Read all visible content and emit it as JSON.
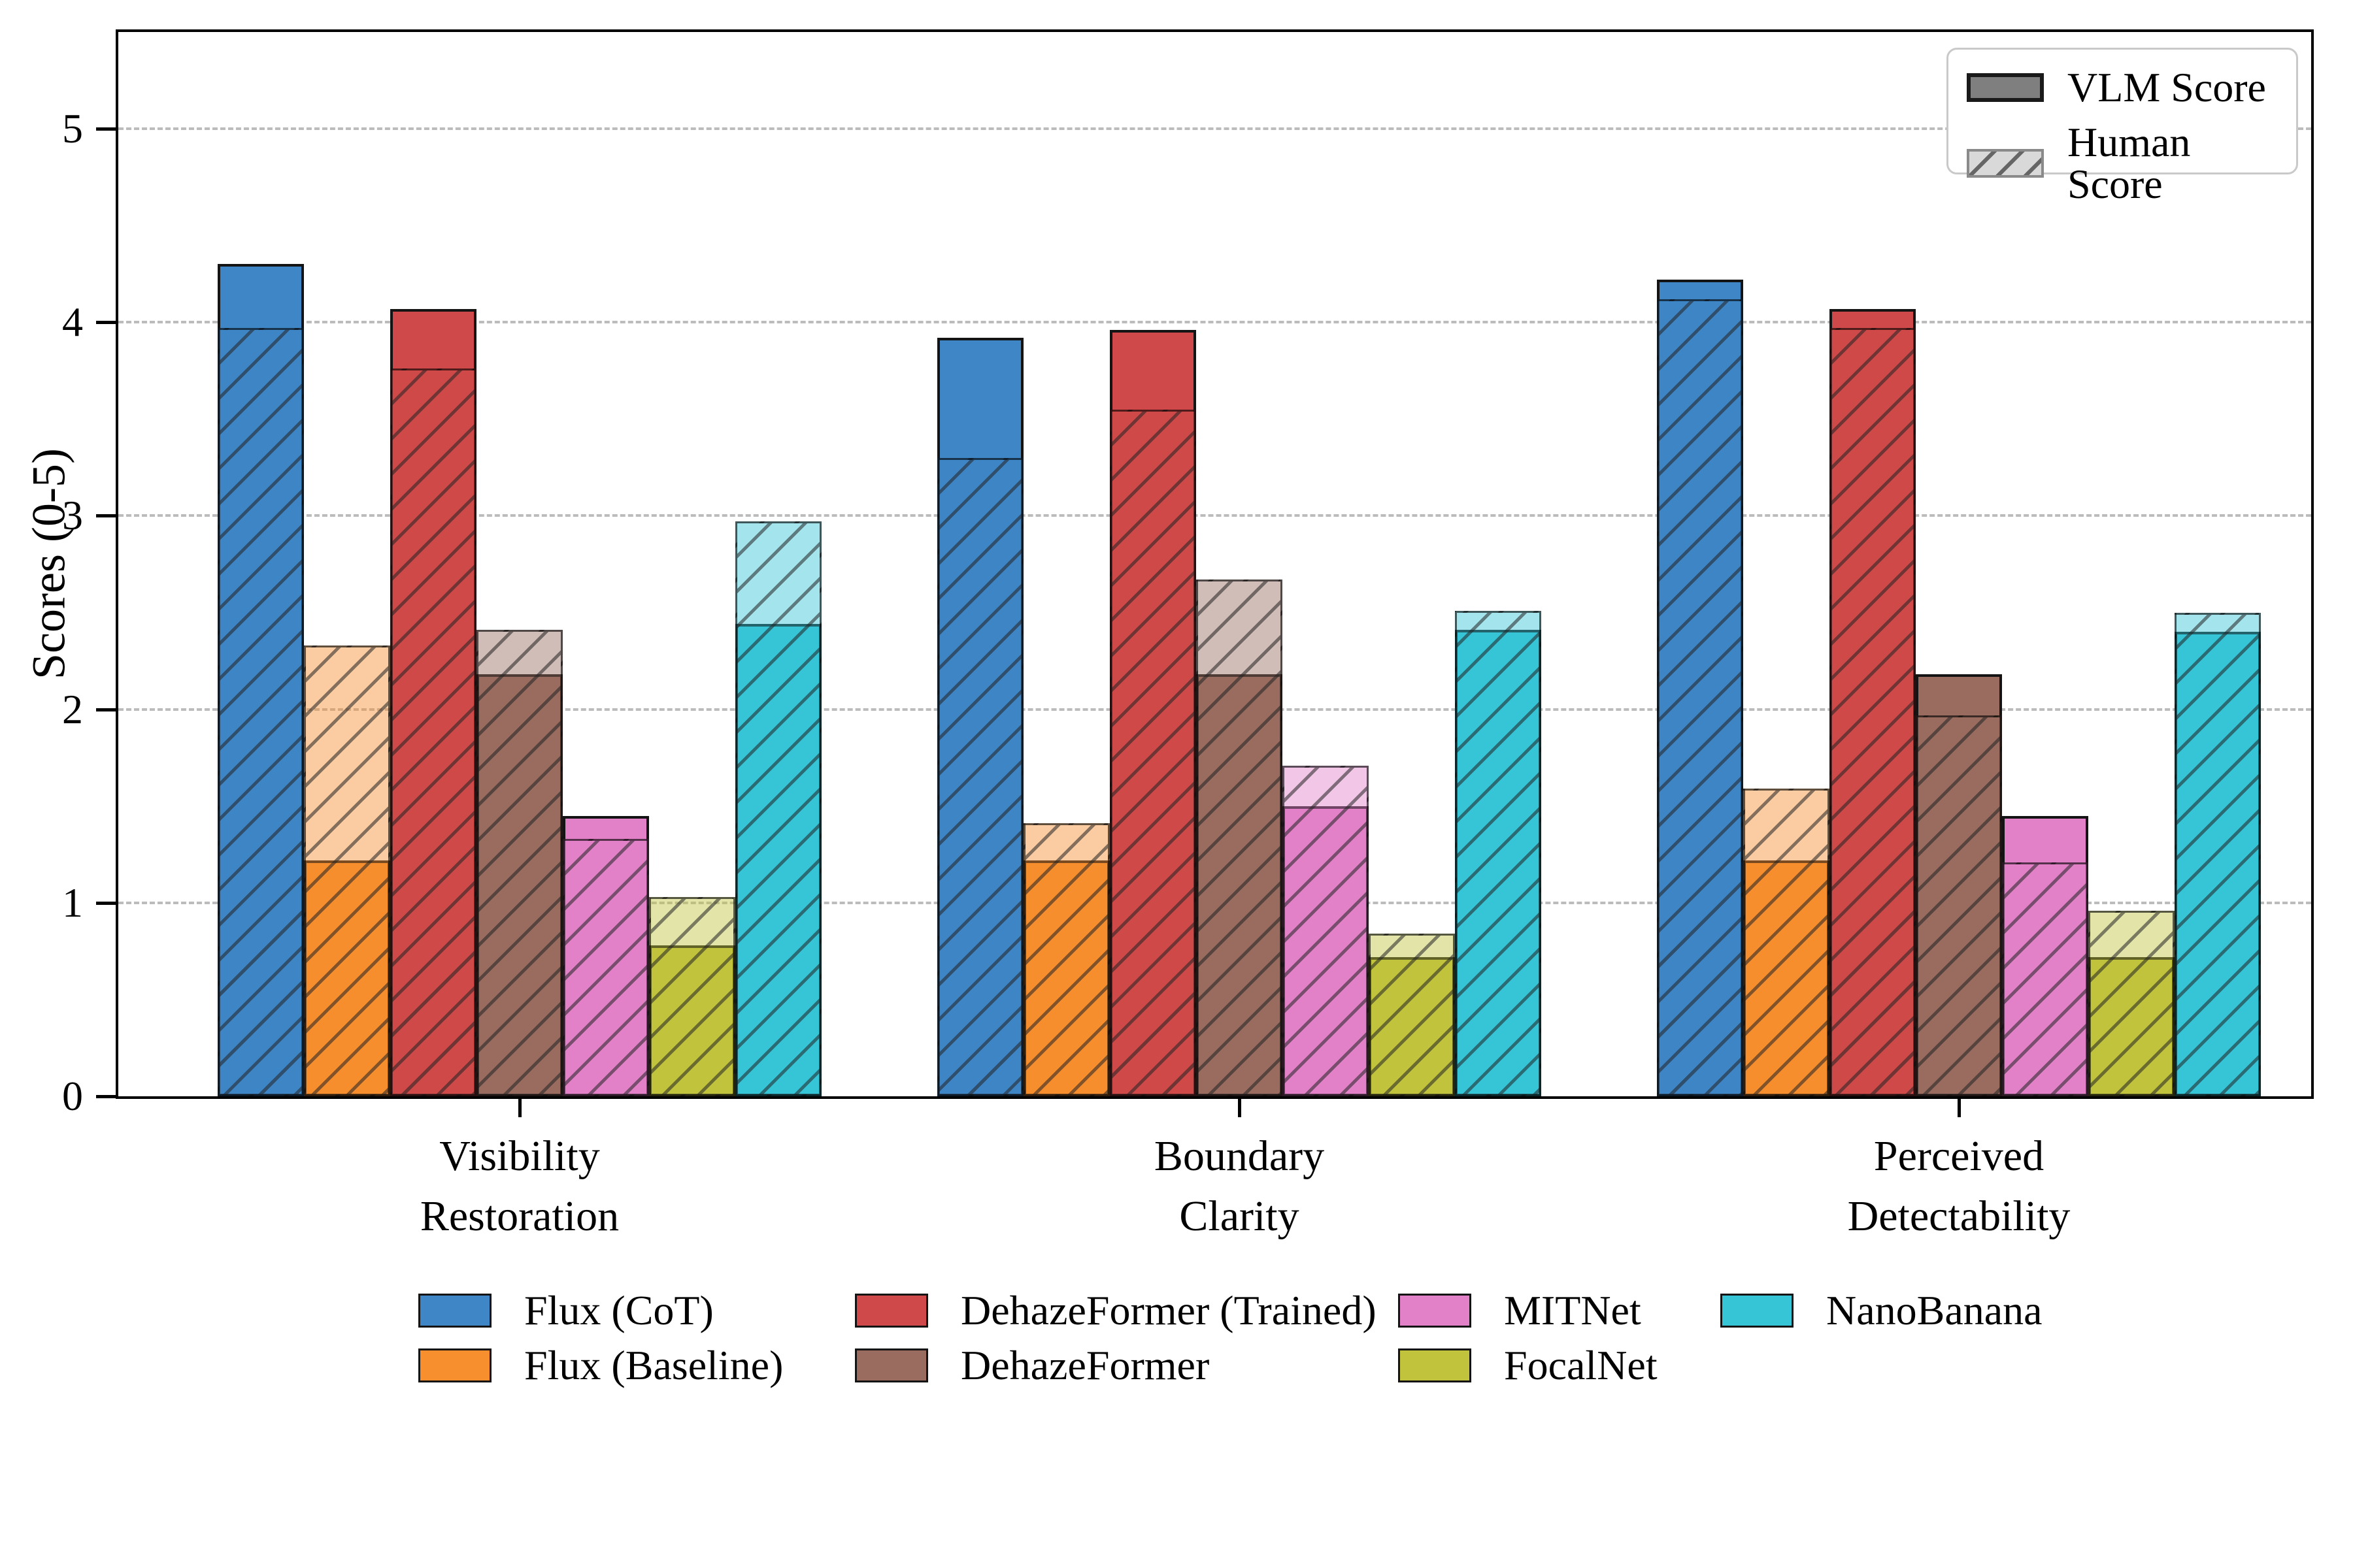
{
  "figure": {
    "background": "#ffffff",
    "y_axis_label": "Scores (0-5)",
    "y_tick_labels": [
      "0",
      "1",
      "2",
      "3",
      "4",
      "5"
    ]
  },
  "score_legend": {
    "vlm_label": "VLM Score",
    "human_label": "Human Score",
    "vlm_swatch_color": "#7f7f7f",
    "human_swatch_color": "#d9d9d9"
  },
  "chart_data": {
    "type": "bar",
    "title": "",
    "xlabel": "",
    "ylabel": "Scores (0-5)",
    "ylim": [
      0,
      5.5
    ],
    "yticks": [
      0,
      1,
      2,
      3,
      4,
      5
    ],
    "grid": "horizontal dashed",
    "legend_position": "score legend upper-right; method legend below axes",
    "categories": [
      "Visibility Restoration",
      "Boundary Clarity",
      "Perceived Detectability"
    ],
    "categories_lines": [
      [
        "Visibility",
        "Restoration"
      ],
      [
        "Boundary",
        "Clarity"
      ],
      [
        "Perceived",
        "Detectability"
      ]
    ],
    "bar_style": {
      "vlm": "solid fill",
      "human": "same color 45% alpha with diagonal hatch, overlaid on VLM bar"
    },
    "series": [
      {
        "name": "Flux (CoT)",
        "color": "#3e86c5",
        "vlm": [
          4.3,
          3.92,
          4.22
        ],
        "human": [
          3.97,
          3.3,
          4.12
        ]
      },
      {
        "name": "Flux (Baseline)",
        "color": "#f78f2e",
        "vlm": [
          1.22,
          1.22,
          1.22
        ],
        "human": [
          2.33,
          1.41,
          1.59
        ]
      },
      {
        "name": "DehazeFormer (Trained)",
        "color": "#d0494a",
        "vlm": [
          4.07,
          3.96,
          4.07
        ],
        "human": [
          3.76,
          3.55,
          3.97
        ]
      },
      {
        "name": "DehazeFormer",
        "color": "#9a6c60",
        "vlm": [
          2.18,
          2.18,
          2.18
        ],
        "human": [
          2.41,
          2.67,
          1.97
        ]
      },
      {
        "name": "MITNet",
        "color": "#e281c7",
        "vlm": [
          1.45,
          1.5,
          1.45
        ],
        "human": [
          1.33,
          1.71,
          1.21
        ]
      },
      {
        "name": "FocalNet",
        "color": "#c2c33d",
        "vlm": [
          0.78,
          0.72,
          0.72
        ],
        "human": [
          1.03,
          0.84,
          0.96
        ]
      },
      {
        "name": "NanoBanana",
        "color": "#35c5d6",
        "vlm": [
          2.44,
          2.41,
          2.4
        ],
        "human": [
          2.97,
          2.51,
          2.5
        ]
      }
    ]
  }
}
